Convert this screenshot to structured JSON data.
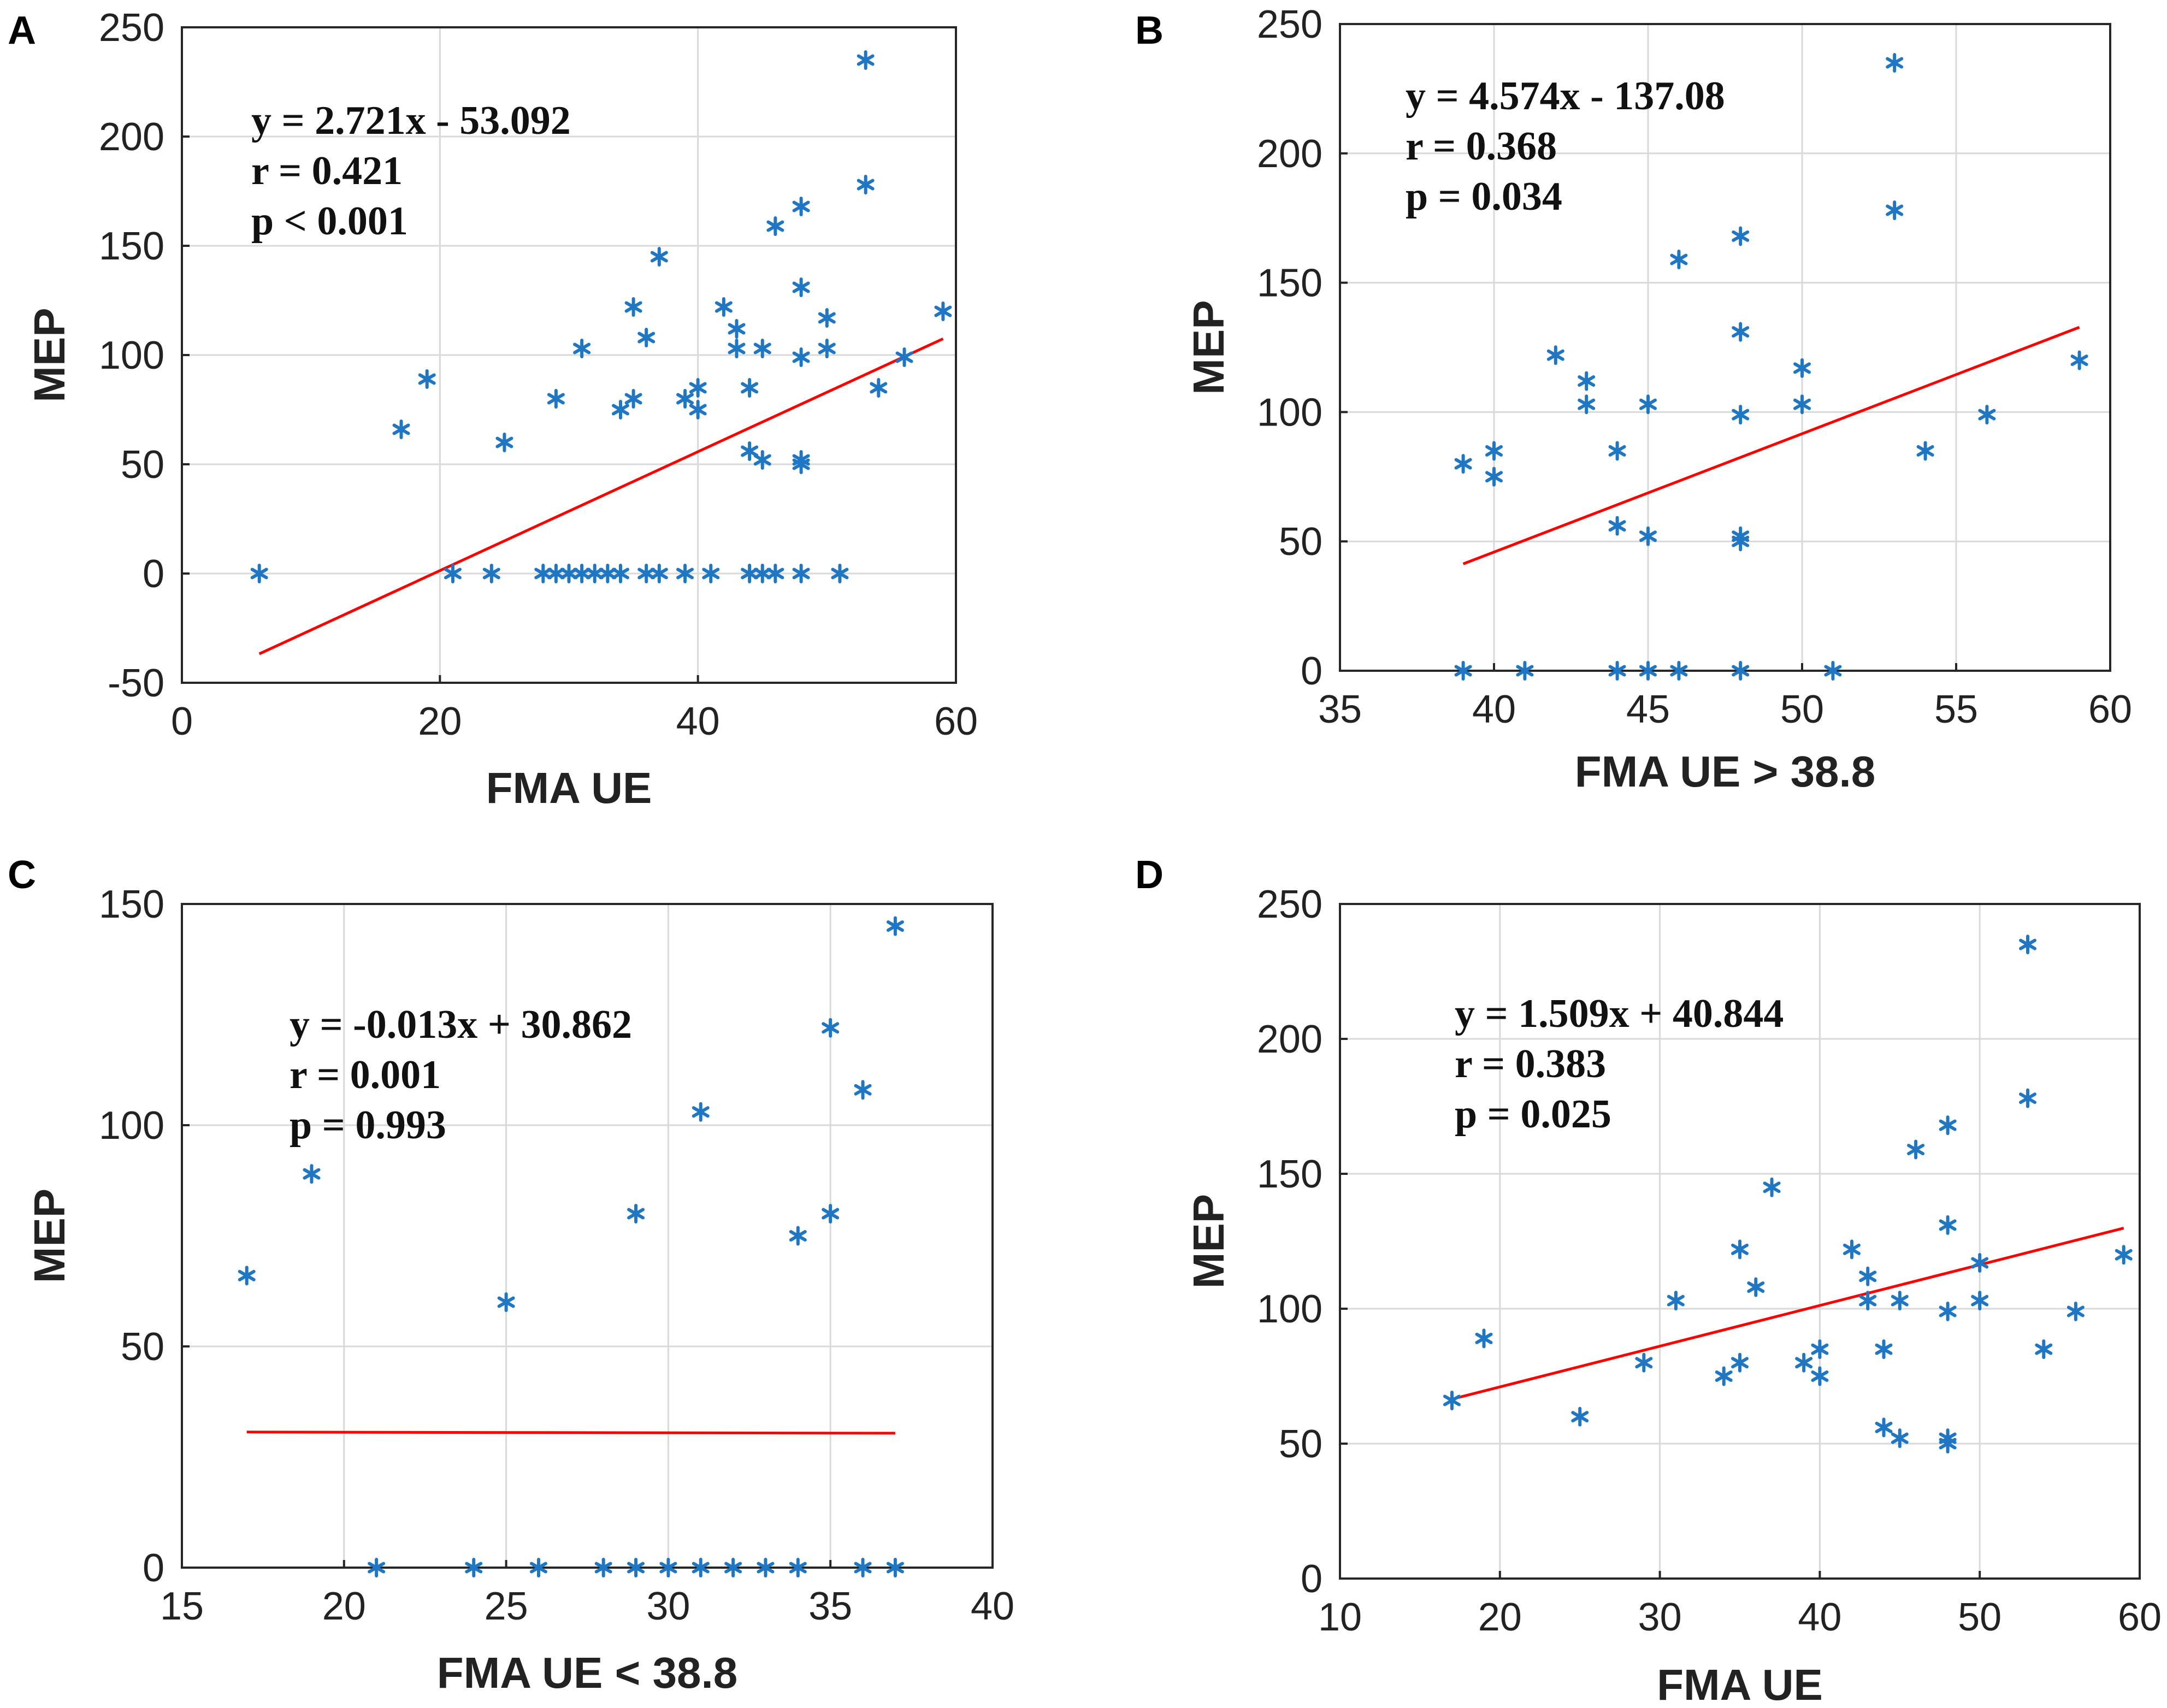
{
  "colors": {
    "marker": "#1f77c4",
    "fit_line": "#ff0000",
    "grid": "#d9d9d9",
    "axes": "#262626"
  },
  "chart_data": [
    {
      "panel": "A",
      "type": "scatter",
      "xlabel": "FMA UE",
      "ylabel": "MEP",
      "xlim": [
        0,
        60
      ],
      "ylim": [
        -50,
        250
      ],
      "xticks": [
        0,
        20,
        40,
        60
      ],
      "yticks": [
        -50,
        0,
        50,
        100,
        150,
        200,
        250
      ],
      "grid": true,
      "annotations": [
        "y = 2.721x - 53.092",
        "r = 0.421",
        "p < 0.001"
      ],
      "fit": {
        "slope": 2.721,
        "intercept": -53.092,
        "x_range": [
          6,
          59
        ]
      },
      "points": [
        [
          6,
          0
        ],
        [
          17,
          66
        ],
        [
          19,
          89
        ],
        [
          21,
          0
        ],
        [
          24,
          0
        ],
        [
          25,
          60
        ],
        [
          28,
          0
        ],
        [
          29,
          80
        ],
        [
          29,
          0
        ],
        [
          30,
          0
        ],
        [
          31,
          103
        ],
        [
          31,
          0
        ],
        [
          32,
          0
        ],
        [
          33,
          0
        ],
        [
          34,
          75
        ],
        [
          34,
          0
        ],
        [
          35,
          80
        ],
        [
          35,
          122
        ],
        [
          36,
          108
        ],
        [
          36,
          0
        ],
        [
          37,
          145
        ],
        [
          37,
          0
        ],
        [
          39,
          80
        ],
        [
          39,
          0
        ],
        [
          40,
          75
        ],
        [
          40,
          85
        ],
        [
          41,
          0
        ],
        [
          42,
          122
        ],
        [
          43,
          103
        ],
        [
          43,
          112
        ],
        [
          44,
          85
        ],
        [
          44,
          56
        ],
        [
          44,
          0
        ],
        [
          45,
          52
        ],
        [
          45,
          103
        ],
        [
          45,
          0
        ],
        [
          46,
          159
        ],
        [
          46,
          0
        ],
        [
          48,
          168
        ],
        [
          48,
          131
        ],
        [
          48,
          99
        ],
        [
          48,
          52
        ],
        [
          48,
          50
        ],
        [
          48,
          0
        ],
        [
          50,
          117
        ],
        [
          50,
          103
        ],
        [
          51,
          0
        ],
        [
          53,
          235
        ],
        [
          53,
          178
        ],
        [
          54,
          85
        ],
        [
          56,
          99
        ],
        [
          59,
          120
        ]
      ]
    },
    {
      "panel": "B",
      "type": "scatter",
      "xlabel": "FMA UE > 38.8",
      "ylabel": "MEP",
      "xlim": [
        35,
        60
      ],
      "ylim": [
        0,
        250
      ],
      "xticks": [
        35,
        40,
        45,
        50,
        55,
        60
      ],
      "yticks": [
        0,
        50,
        100,
        150,
        200,
        250
      ],
      "grid": true,
      "annotations": [
        "y = 4.574x - 137.08",
        "r = 0.368",
        "p = 0.034"
      ],
      "fit": {
        "slope": 4.574,
        "intercept": -137.08,
        "x_range": [
          39,
          59
        ]
      },
      "points": [
        [
          39,
          80
        ],
        [
          39,
          0
        ],
        [
          40,
          85
        ],
        [
          40,
          75
        ],
        [
          41,
          0
        ],
        [
          42,
          122
        ],
        [
          43,
          112
        ],
        [
          43,
          103
        ],
        [
          44,
          85
        ],
        [
          44,
          56
        ],
        [
          44,
          0
        ],
        [
          45,
          103
        ],
        [
          45,
          52
        ],
        [
          45,
          0
        ],
        [
          46,
          159
        ],
        [
          46,
          0
        ],
        [
          48,
          168
        ],
        [
          48,
          131
        ],
        [
          48,
          99
        ],
        [
          48,
          52
        ],
        [
          48,
          50
        ],
        [
          48,
          0
        ],
        [
          50,
          117
        ],
        [
          50,
          103
        ],
        [
          51,
          0
        ],
        [
          53,
          235
        ],
        [
          53,
          178
        ],
        [
          54,
          85
        ],
        [
          56,
          99
        ],
        [
          59,
          120
        ]
      ]
    },
    {
      "panel": "C",
      "type": "scatter",
      "xlabel": "FMA UE < 38.8",
      "ylabel": "MEP",
      "xlim": [
        15,
        40
      ],
      "ylim": [
        0,
        150
      ],
      "xticks": [
        15,
        20,
        25,
        30,
        35,
        40
      ],
      "yticks": [
        0,
        50,
        100,
        150
      ],
      "grid": true,
      "annotations": [
        "y = -0.013x + 30.862",
        "r = 0.001",
        "p = 0.993"
      ],
      "fit": {
        "slope": -0.013,
        "intercept": 30.862,
        "x_range": [
          17,
          37
        ]
      },
      "points": [
        [
          17,
          66
        ],
        [
          19,
          89
        ],
        [
          21,
          0
        ],
        [
          24,
          0
        ],
        [
          25,
          60
        ],
        [
          26,
          0
        ],
        [
          28,
          0
        ],
        [
          29,
          80
        ],
        [
          29,
          0
        ],
        [
          30,
          0
        ],
        [
          31,
          103
        ],
        [
          31,
          0
        ],
        [
          32,
          0
        ],
        [
          33,
          0
        ],
        [
          34,
          75
        ],
        [
          34,
          0
        ],
        [
          35,
          80
        ],
        [
          35,
          122
        ],
        [
          36,
          108
        ],
        [
          36,
          0
        ],
        [
          37,
          145
        ],
        [
          37,
          0
        ]
      ]
    },
    {
      "panel": "D",
      "type": "scatter",
      "xlabel": "FMA UE",
      "ylabel": "MEP",
      "xlim": [
        10,
        60
      ],
      "ylim": [
        0,
        250
      ],
      "xticks": [
        10,
        20,
        30,
        40,
        50,
        60
      ],
      "yticks": [
        0,
        50,
        100,
        150,
        200,
        250
      ],
      "grid": true,
      "annotations": [
        "y = 1.509x + 40.844",
        "r = 0.383",
        "p = 0.025"
      ],
      "fit": {
        "slope": 1.509,
        "intercept": 40.844,
        "x_range": [
          17,
          59
        ]
      },
      "points": [
        [
          17,
          66
        ],
        [
          19,
          89
        ],
        [
          25,
          60
        ],
        [
          29,
          80
        ],
        [
          31,
          103
        ],
        [
          34,
          75
        ],
        [
          35,
          80
        ],
        [
          35,
          122
        ],
        [
          36,
          108
        ],
        [
          37,
          145
        ],
        [
          39,
          80
        ],
        [
          40,
          75
        ],
        [
          40,
          85
        ],
        [
          42,
          122
        ],
        [
          43,
          112
        ],
        [
          43,
          103
        ],
        [
          44,
          85
        ],
        [
          44,
          56
        ],
        [
          45,
          52
        ],
        [
          45,
          103
        ],
        [
          46,
          159
        ],
        [
          48,
          168
        ],
        [
          48,
          131
        ],
        [
          48,
          99
        ],
        [
          48,
          52
        ],
        [
          48,
          50
        ],
        [
          50,
          117
        ],
        [
          50,
          103
        ],
        [
          53,
          235
        ],
        [
          53,
          178
        ],
        [
          54,
          85
        ],
        [
          56,
          99
        ],
        [
          59,
          120
        ]
      ]
    }
  ]
}
